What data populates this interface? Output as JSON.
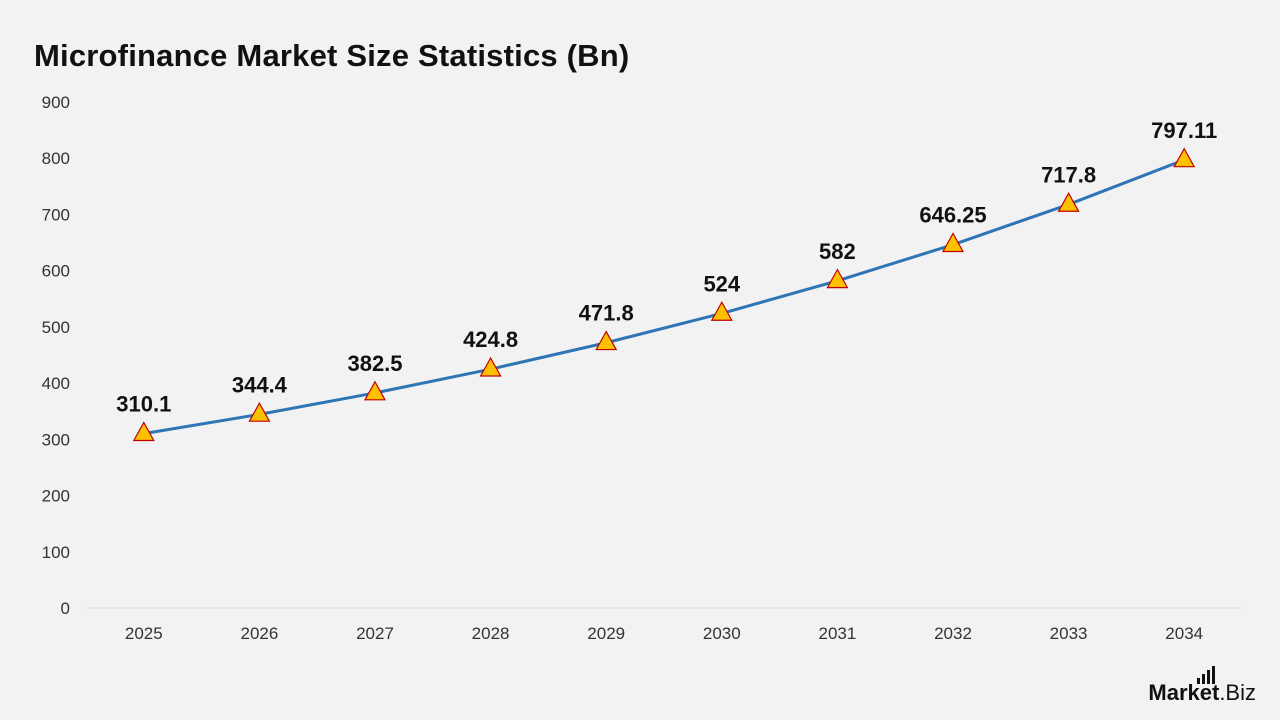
{
  "title": "Microfinance Market Size Statistics (Bn)",
  "brand": {
    "name": "Market",
    "suffix": ".Biz"
  },
  "colors": {
    "line": "#2e75b6",
    "marker_fill": "#ffc000",
    "marker_stroke": "#c00000",
    "background": "#f2f2f2"
  },
  "chart_data": {
    "type": "line",
    "title": "Microfinance Market Size Statistics (Bn)",
    "xlabel": "",
    "ylabel": "",
    "categories": [
      "2025",
      "2026",
      "2027",
      "2028",
      "2029",
      "2030",
      "2031",
      "2032",
      "2033",
      "2034"
    ],
    "series": [
      {
        "values": [
          310.1,
          344.4,
          382.5,
          424.8,
          471.8,
          524,
          582,
          646.25,
          717.8,
          797.11
        ],
        "labels": [
          "310.1",
          "344.4",
          "382.5",
          "424.8",
          "471.8",
          "524",
          "582",
          "646.25",
          "717.8",
          "797.11"
        ],
        "marker": "triangle"
      }
    ],
    "ylim": [
      0,
      900
    ],
    "yticks": [
      "0",
      "100",
      "200",
      "300",
      "400",
      "500",
      "600",
      "700",
      "800",
      "900"
    ],
    "grid": false,
    "legend": "none"
  }
}
